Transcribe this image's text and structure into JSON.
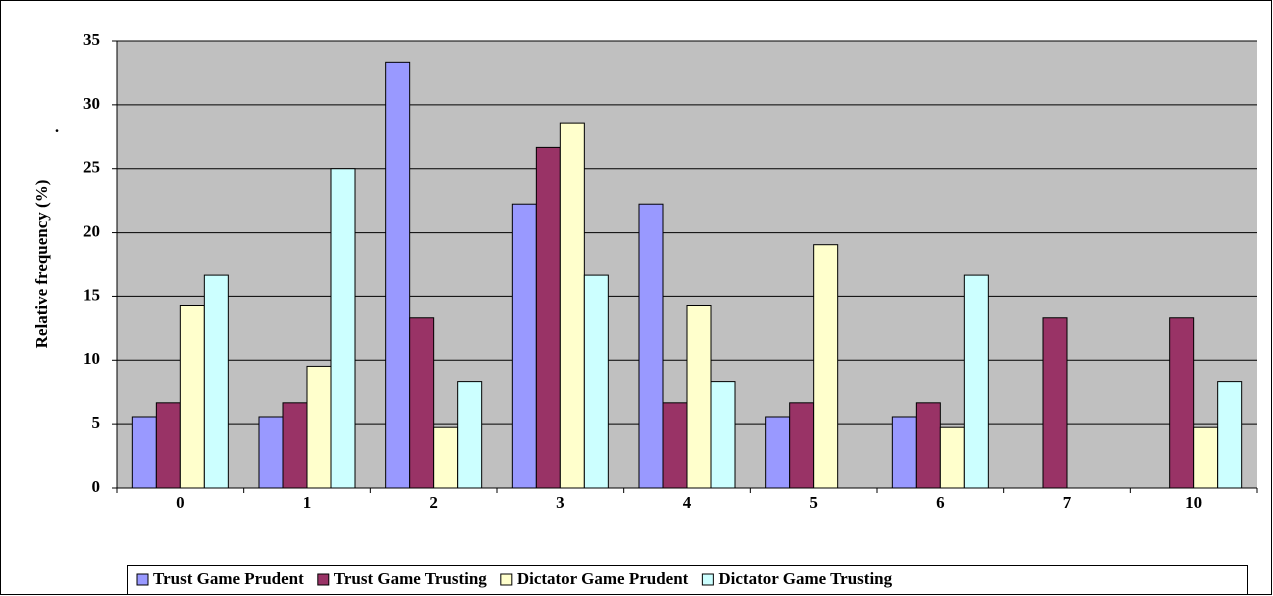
{
  "chart_data": {
    "type": "bar",
    "y_label": "Relative frequency (%)",
    "annotation": ".",
    "categories": [
      "0",
      "1",
      "2",
      "3",
      "4",
      "5",
      "6",
      "7",
      "10"
    ],
    "series": [
      {
        "name": "Trust Game Prudent",
        "color": "#9999ff",
        "values": [
          5.56,
          5.56,
          33.33,
          22.22,
          22.22,
          5.56,
          5.56,
          0,
          0
        ]
      },
      {
        "name": "Trust Game Trusting",
        "color": "#993366",
        "values": [
          6.67,
          6.67,
          13.33,
          26.67,
          6.67,
          6.67,
          6.67,
          13.33,
          13.33
        ]
      },
      {
        "name": "Dictator Game Prudent",
        "color": "#ffffcc",
        "values": [
          14.29,
          9.52,
          4.76,
          28.57,
          14.29,
          19.05,
          4.76,
          0,
          4.76
        ]
      },
      {
        "name": "Dictator Game Trusting",
        "color": "#ccffff",
        "values": [
          16.67,
          25,
          8.33,
          16.67,
          8.33,
          0,
          16.67,
          0,
          8.33
        ]
      }
    ],
    "ylim": [
      0,
      35
    ],
    "yticks": [
      0,
      5,
      10,
      15,
      20,
      25,
      30,
      35
    ],
    "grid": true,
    "legend": "bottom"
  }
}
